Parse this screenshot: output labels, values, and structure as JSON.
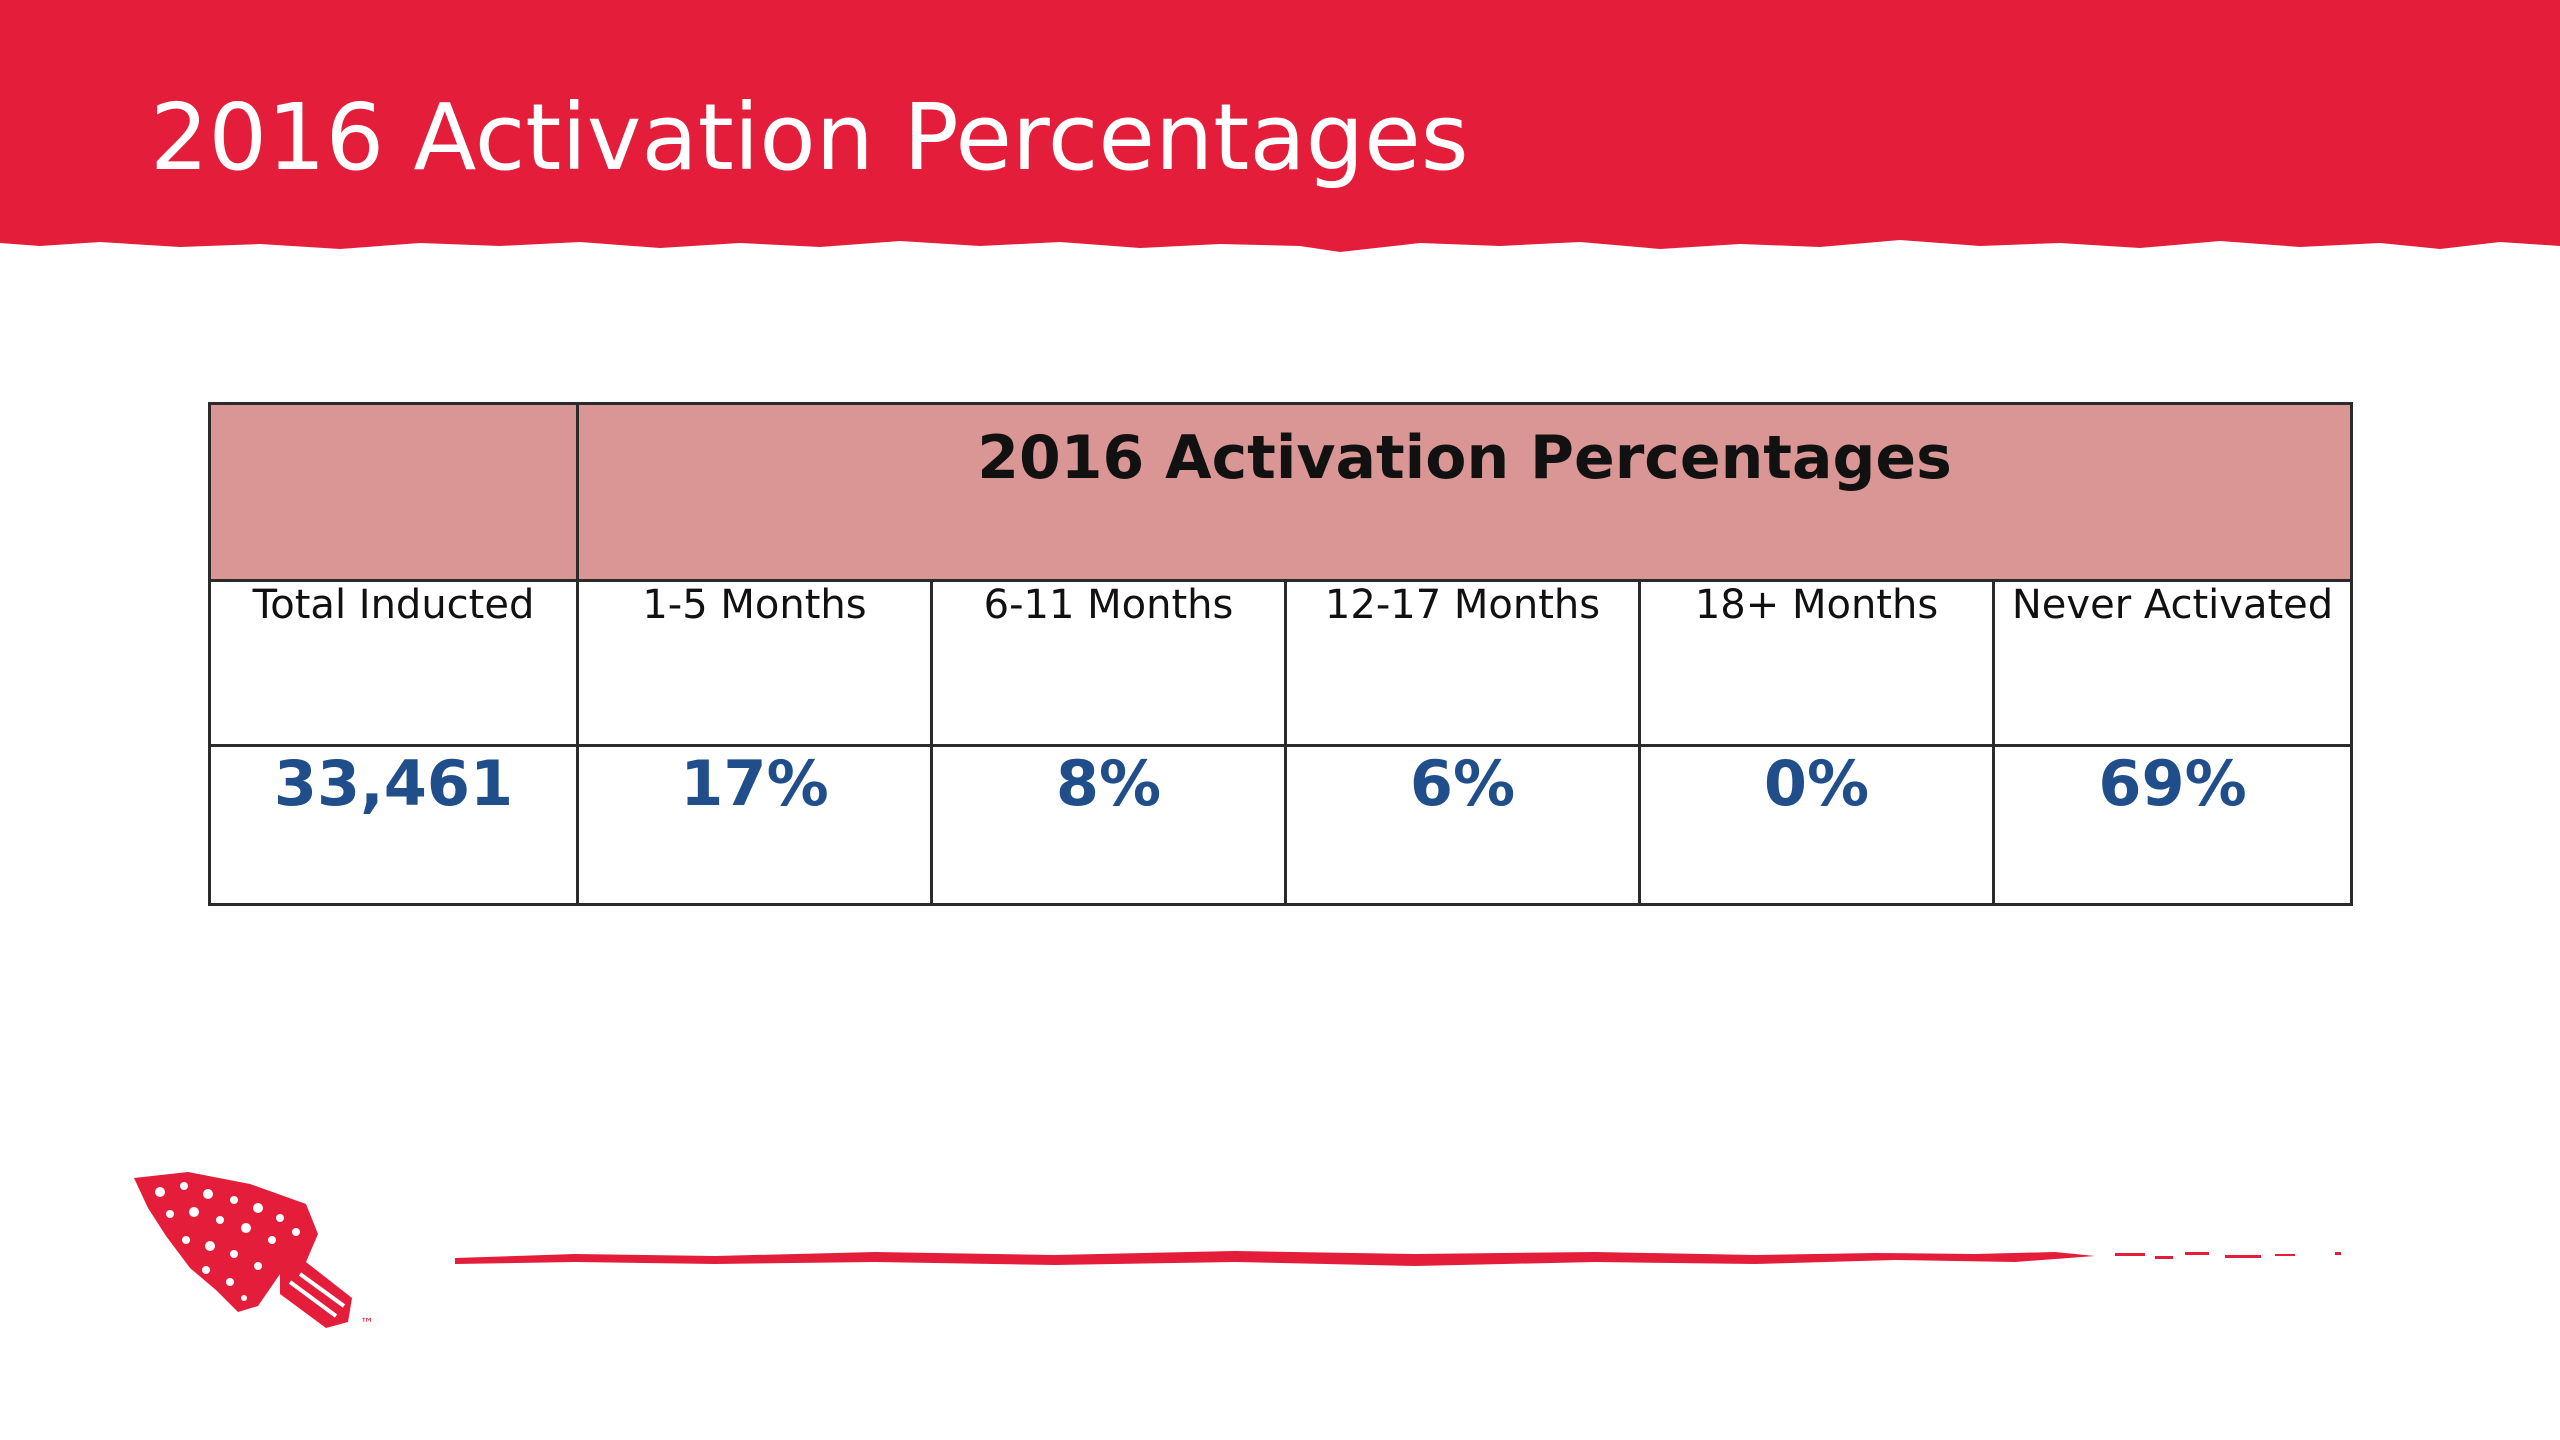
{
  "slide": {
    "title": "2016 Activation Percentages",
    "band_color": "#e31d3a"
  },
  "table": {
    "title": "2016 Activation Percentages",
    "header_color": "#d99694",
    "value_color": "#1f4e8a",
    "columns": [
      {
        "label": "Total Inducted",
        "value": "33,461"
      },
      {
        "label": "1-5 Months",
        "value": "17%"
      },
      {
        "label": "6-11 Months",
        "value": "8%"
      },
      {
        "label": "12-17 Months",
        "value": "6%"
      },
      {
        "label": "18+ Months",
        "value": "0%"
      },
      {
        "label": "Never Activated",
        "value": "69%"
      }
    ]
  },
  "footer": {
    "logo": "arrowhead-logo-icon",
    "trademark": "™"
  }
}
